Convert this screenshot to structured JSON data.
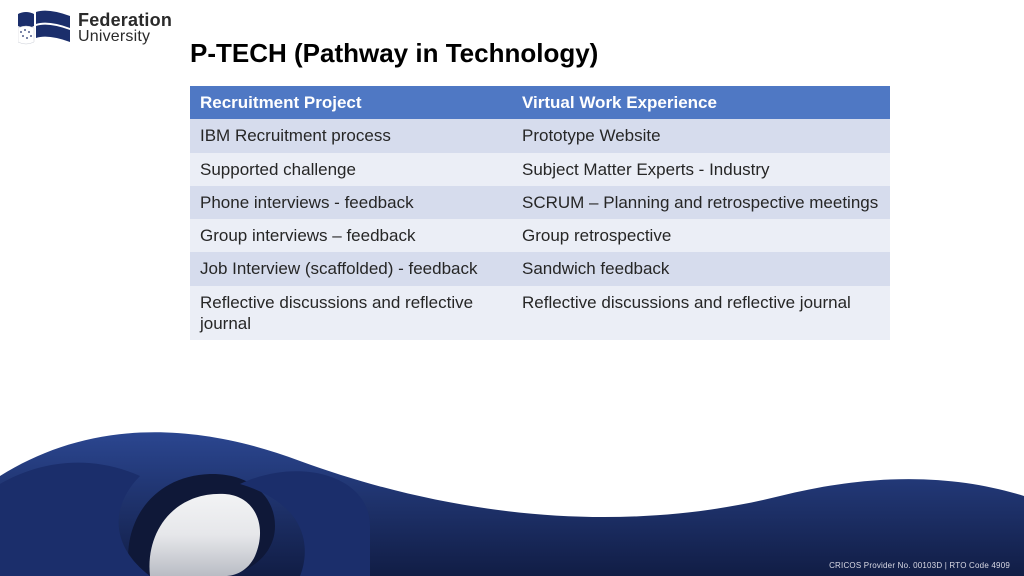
{
  "logo": {
    "line1": "Federation",
    "line2": "University",
    "flag_blue": "#1b2e6b",
    "flag_white": "#ffffff",
    "stars_color": "#1b2e6b"
  },
  "title": "P-TECH (Pathway in Technology)",
  "table": {
    "header_bg": "#4f78c4",
    "header_fg": "#ffffff",
    "row_alt_a": "#d6dced",
    "row_alt_b": "#ebeef6",
    "border_color": "#ffffff",
    "font_size": 17,
    "columns": [
      "Recruitment Project",
      "Virtual Work Experience"
    ],
    "rows": [
      [
        "IBM Recruitment process",
        "Prototype Website"
      ],
      [
        "Supported challenge",
        "Subject Matter Experts - Industry"
      ],
      [
        "Phone interviews - feedback",
        "SCRUM – Planning and retrospective meetings"
      ],
      [
        "Group interviews – feedback",
        "Group retrospective"
      ],
      [
        "Job Interview (scaffolded) - feedback",
        "Sandwich feedback"
      ],
      [
        "Reflective discussions and reflective journal",
        "Reflective discussions and reflective journal"
      ]
    ]
  },
  "ribbon": {
    "dark_blue": "#1b2e6b",
    "mid_blue": "#2b4690",
    "light_face": "#e6e7ea",
    "shadow": "#b9bcc4"
  },
  "footer": "CRICOS Provider No. 00103D | RTO Code 4909"
}
